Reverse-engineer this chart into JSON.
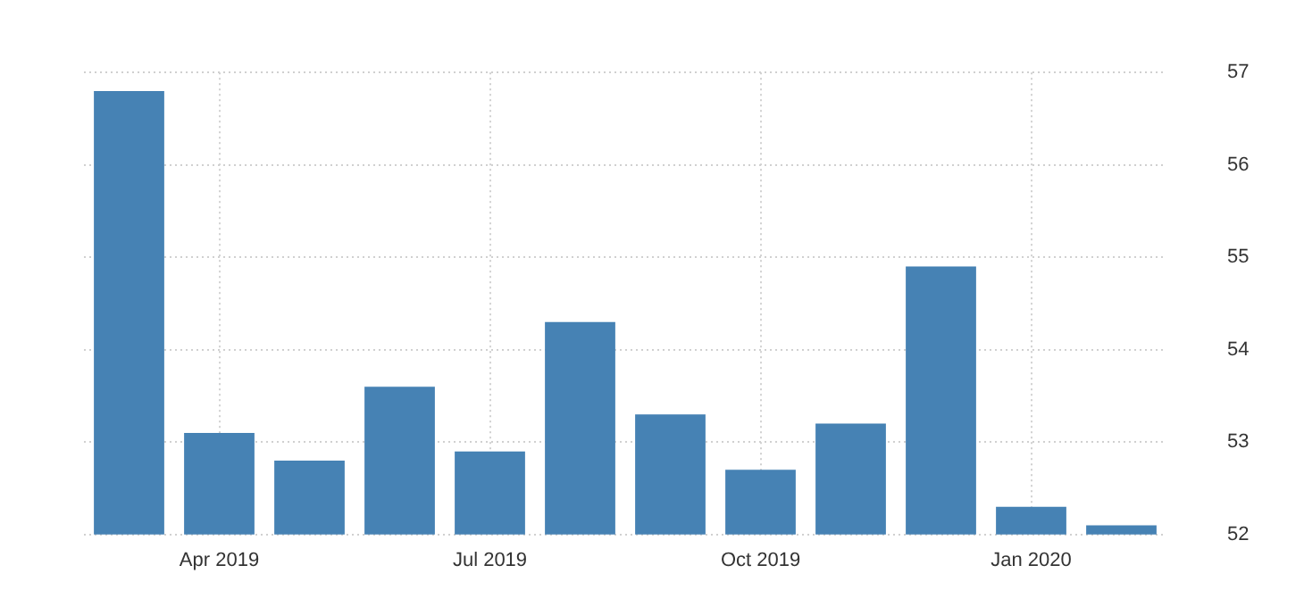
{
  "chart_data": {
    "type": "bar",
    "categories": [
      null,
      "Apr 2019",
      null,
      null,
      "Jul 2019",
      null,
      null,
      "Oct 2019",
      null,
      null,
      "Jan 2020",
      null
    ],
    "values": [
      56.8,
      53.1,
      52.8,
      53.6,
      52.9,
      54.3,
      53.3,
      52.7,
      53.2,
      54.9,
      52.3,
      52.1
    ],
    "color": "#4682b4",
    "ylim": [
      52,
      57
    ],
    "yticks": [
      52,
      53,
      54,
      55,
      56,
      57
    ],
    "grid": true
  }
}
